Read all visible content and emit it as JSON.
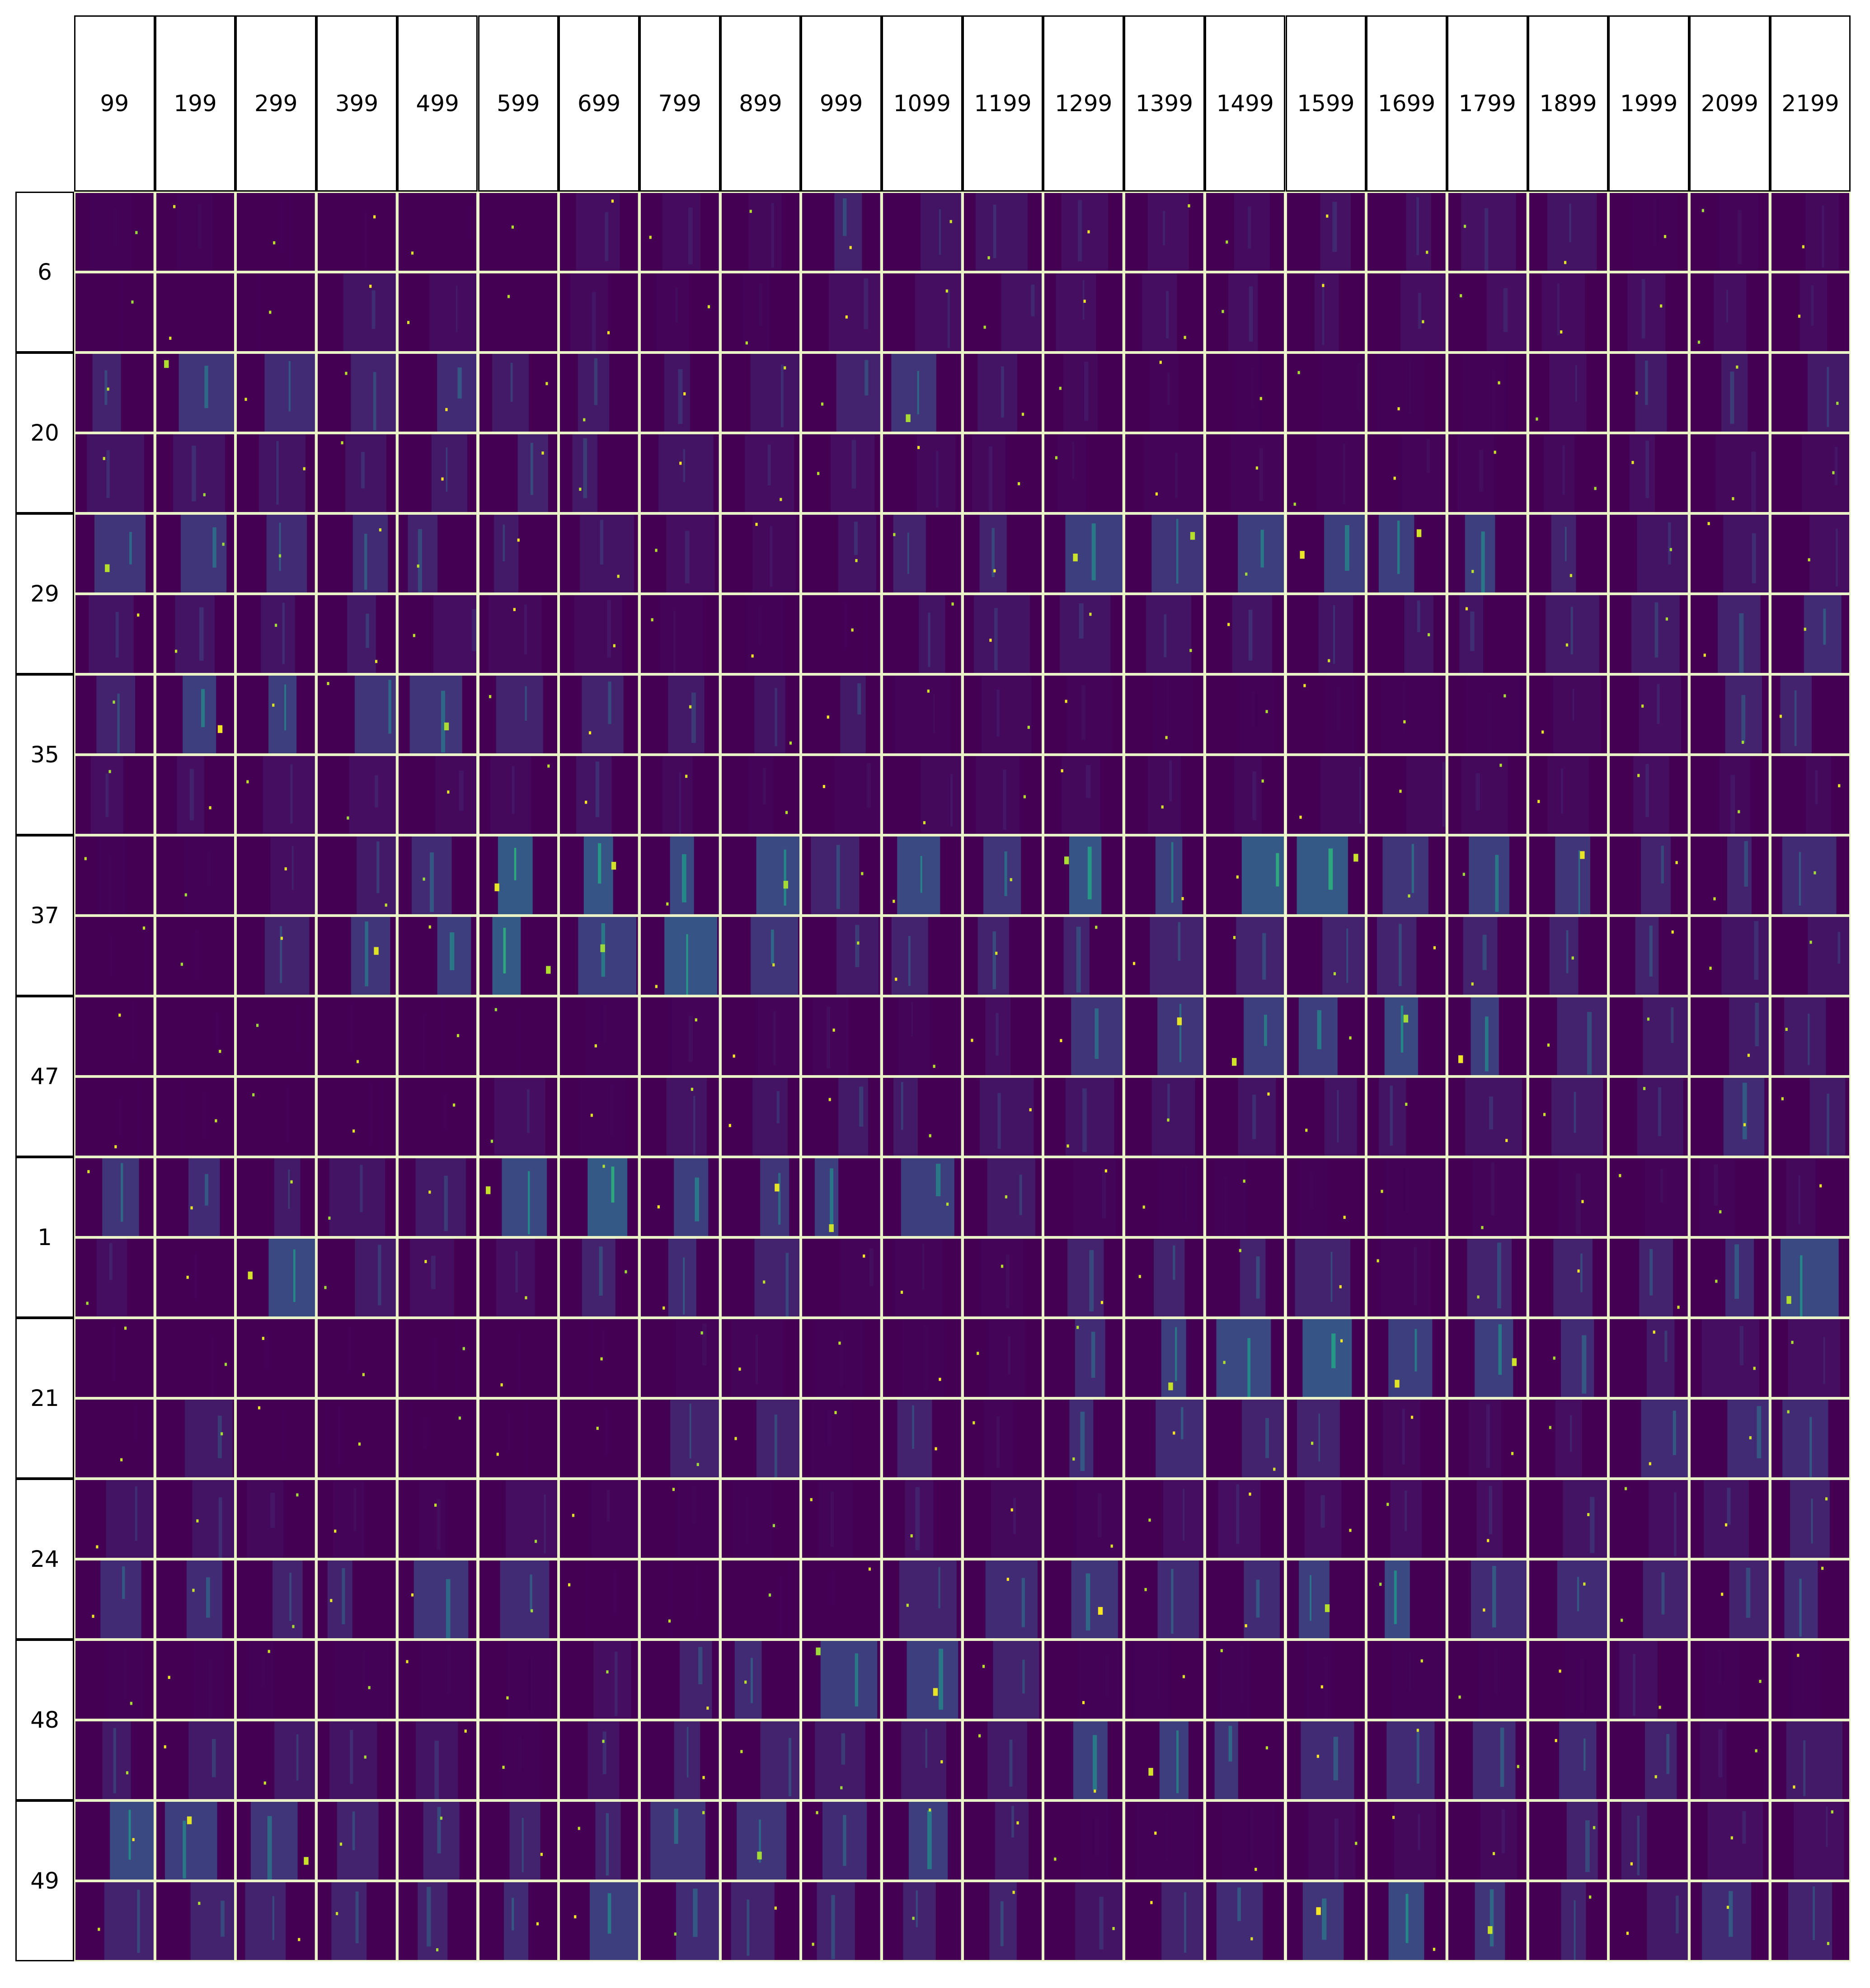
{
  "columns": [
    "99",
    "199",
    "299",
    "399",
    "499",
    "599",
    "699",
    "799",
    "899",
    "999",
    "1099",
    "1199",
    "1299",
    "1399",
    "1499",
    "1599",
    "1699",
    "1799",
    "1899",
    "1999",
    "2099",
    "2199"
  ],
  "rows": [
    "6",
    "20",
    "29",
    "35",
    "37",
    "47",
    "1",
    "21",
    "24",
    "48",
    "49"
  ],
  "sub_rows_per_row": 2,
  "colors": {
    "background": "#440154",
    "grid_line": "#e9f3c6",
    "header_border": "#000000",
    "colormap": "viridis"
  },
  "intensity": {
    "6": [
      [
        0.1,
        0.12,
        0.05,
        0.05,
        0.05,
        0.02,
        0.25,
        0.22,
        0.2,
        0.4,
        0.3,
        0.3,
        0.25,
        0.25,
        0.22,
        0.28,
        0.28,
        0.28,
        0.3,
        0.1,
        0.15,
        0.2
      ],
      [
        0.02,
        0.02,
        0.02,
        0.3,
        0.22,
        0.02,
        0.2,
        0.15,
        0.12,
        0.25,
        0.25,
        0.28,
        0.25,
        0.25,
        0.25,
        0.25,
        0.25,
        0.25,
        0.22,
        0.25,
        0.25,
        0.22
      ]
    ],
    "20": [
      [
        0.4,
        0.5,
        0.45,
        0.4,
        0.45,
        0.35,
        0.35,
        0.3,
        0.3,
        0.4,
        0.5,
        0.3,
        0.2,
        0.15,
        0.1,
        0.1,
        0.1,
        0.1,
        0.25,
        0.35,
        0.35,
        0.35
      ],
      [
        0.3,
        0.3,
        0.3,
        0.3,
        0.35,
        0.4,
        0.35,
        0.3,
        0.25,
        0.25,
        0.2,
        0.2,
        0.15,
        0.15,
        0.15,
        0.15,
        0.15,
        0.15,
        0.2,
        0.25,
        0.2,
        0.2
      ]
    ],
    "29": [
      [
        0.5,
        0.5,
        0.45,
        0.45,
        0.4,
        0.35,
        0.3,
        0.25,
        0.2,
        0.3,
        0.4,
        0.4,
        0.55,
        0.5,
        0.55,
        0.55,
        0.55,
        0.55,
        0.4,
        0.3,
        0.3,
        0.25
      ],
      [
        0.3,
        0.3,
        0.3,
        0.35,
        0.25,
        0.2,
        0.2,
        0.15,
        0.1,
        0.05,
        0.3,
        0.3,
        0.3,
        0.3,
        0.3,
        0.3,
        0.3,
        0.3,
        0.35,
        0.35,
        0.4,
        0.45
      ]
    ],
    "35": [
      [
        0.4,
        0.55,
        0.55,
        0.5,
        0.5,
        0.4,
        0.4,
        0.35,
        0.3,
        0.35,
        0.15,
        0.2,
        0.15,
        0.1,
        0.1,
        0.1,
        0.1,
        0.1,
        0.2,
        0.25,
        0.4,
        0.4
      ],
      [
        0.25,
        0.25,
        0.25,
        0.25,
        0.2,
        0.2,
        0.3,
        0.2,
        0.15,
        0.15,
        0.2,
        0.2,
        0.2,
        0.2,
        0.2,
        0.2,
        0.2,
        0.2,
        0.2,
        0.25,
        0.2,
        0.2
      ]
    ],
    "37": [
      [
        0.1,
        0.1,
        0.25,
        0.35,
        0.45,
        0.7,
        0.65,
        0.6,
        0.6,
        0.4,
        0.6,
        0.5,
        0.65,
        0.55,
        0.7,
        0.7,
        0.5,
        0.55,
        0.5,
        0.4,
        0.4,
        0.45
      ],
      [
        0.05,
        0.05,
        0.4,
        0.5,
        0.55,
        0.7,
        0.55,
        0.65,
        0.5,
        0.35,
        0.4,
        0.4,
        0.4,
        0.4,
        0.4,
        0.4,
        0.4,
        0.4,
        0.4,
        0.4,
        0.3,
        0.3
      ]
    ],
    "47": [
      [
        0.05,
        0.05,
        0.05,
        0.05,
        0.05,
        0.05,
        0.1,
        0.15,
        0.15,
        0.15,
        0.15,
        0.25,
        0.5,
        0.5,
        0.55,
        0.55,
        0.6,
        0.55,
        0.4,
        0.35,
        0.35,
        0.35
      ],
      [
        0.05,
        0.05,
        0.05,
        0.05,
        0.05,
        0.25,
        0.1,
        0.3,
        0.3,
        0.35,
        0.35,
        0.3,
        0.3,
        0.3,
        0.3,
        0.3,
        0.3,
        0.3,
        0.35,
        0.3,
        0.45,
        0.35
      ]
    ],
    "1": [
      [
        0.5,
        0.45,
        0.35,
        0.3,
        0.35,
        0.6,
        0.7,
        0.55,
        0.5,
        0.55,
        0.55,
        0.35,
        0.15,
        0.1,
        0.1,
        0.1,
        0.1,
        0.15,
        0.15,
        0.15,
        0.15,
        0.2
      ],
      [
        0.25,
        0.05,
        0.6,
        0.35,
        0.25,
        0.25,
        0.4,
        0.45,
        0.4,
        0.15,
        0.15,
        0.15,
        0.4,
        0.4,
        0.4,
        0.4,
        0.15,
        0.4,
        0.4,
        0.4,
        0.45,
        0.6
      ]
    ],
    "21": [
      [
        0.05,
        0.05,
        0.05,
        0.05,
        0.05,
        0.05,
        0.05,
        0.15,
        0.15,
        0.1,
        0.1,
        0.15,
        0.45,
        0.55,
        0.6,
        0.65,
        0.55,
        0.55,
        0.45,
        0.35,
        0.25,
        0.25
      ],
      [
        0.05,
        0.35,
        0.05,
        0.05,
        0.05,
        0.05,
        0.05,
        0.4,
        0.4,
        0.1,
        0.4,
        0.15,
        0.45,
        0.45,
        0.4,
        0.4,
        0.2,
        0.2,
        0.25,
        0.45,
        0.45,
        0.45
      ]
    ],
    "24": [
      [
        0.3,
        0.3,
        0.2,
        0.15,
        0.15,
        0.25,
        0.15,
        0.1,
        0.1,
        0.15,
        0.25,
        0.2,
        0.15,
        0.25,
        0.25,
        0.25,
        0.25,
        0.25,
        0.3,
        0.25,
        0.3,
        0.4
      ],
      [
        0.45,
        0.45,
        0.4,
        0.4,
        0.5,
        0.45,
        0.05,
        0.05,
        0.05,
        0.05,
        0.4,
        0.45,
        0.5,
        0.45,
        0.45,
        0.55,
        0.6,
        0.45,
        0.45,
        0.4,
        0.4,
        0.45
      ]
    ],
    "48": [
      [
        0.1,
        0.1,
        0.1,
        0.1,
        0.1,
        0.1,
        0.25,
        0.4,
        0.45,
        0.55,
        0.55,
        0.4,
        0.1,
        0.1,
        0.1,
        0.1,
        0.1,
        0.1,
        0.1,
        0.25,
        0.1,
        0.1
      ],
      [
        0.35,
        0.35,
        0.35,
        0.3,
        0.3,
        0.1,
        0.3,
        0.4,
        0.4,
        0.35,
        0.35,
        0.35,
        0.55,
        0.55,
        0.5,
        0.45,
        0.45,
        0.45,
        0.45,
        0.4,
        0.2,
        0.35
      ]
    ],
    "49": [
      [
        0.6,
        0.55,
        0.5,
        0.4,
        0.4,
        0.4,
        0.4,
        0.5,
        0.5,
        0.45,
        0.55,
        0.35,
        0.1,
        0.1,
        0.1,
        0.2,
        0.2,
        0.2,
        0.4,
        0.35,
        0.25,
        0.25
      ],
      [
        0.4,
        0.4,
        0.4,
        0.4,
        0.4,
        0.45,
        0.55,
        0.45,
        0.4,
        0.4,
        0.4,
        0.4,
        0.3,
        0.4,
        0.45,
        0.5,
        0.6,
        0.5,
        0.4,
        0.35,
        0.45,
        0.4
      ]
    ]
  }
}
